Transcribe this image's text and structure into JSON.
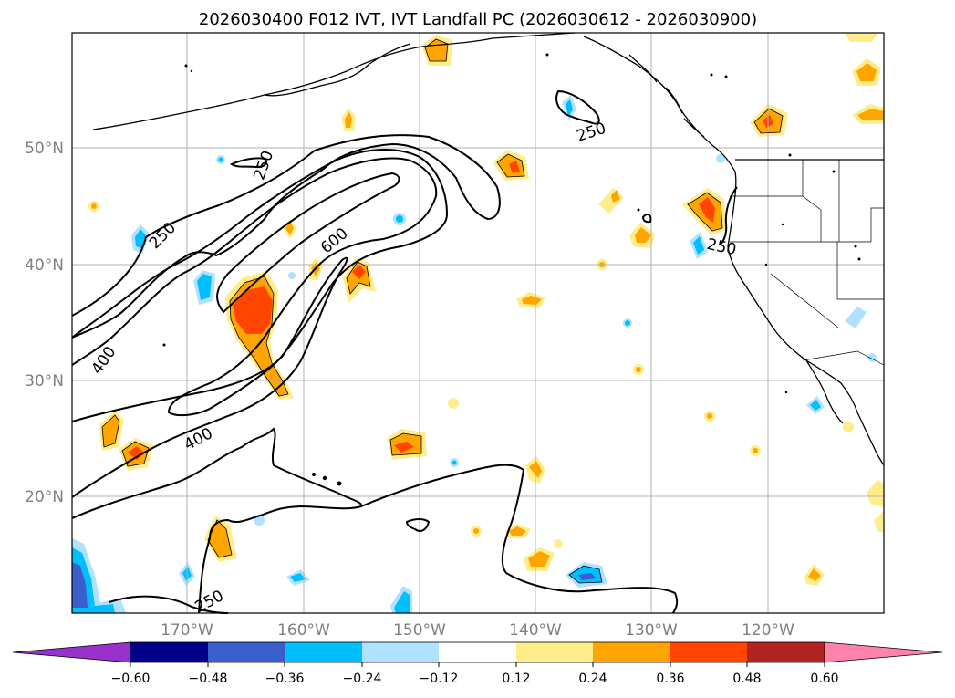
{
  "title": "2026030400 F012 IVT, IVT Landfall PC (2026030612 - 2026030900)",
  "lat_labels": [
    "50°N",
    "40°N",
    "30°N",
    "20°N"
  ],
  "lon_labels": [
    "170°W",
    "160°W",
    "150°W",
    "140°W",
    "130°W",
    "120°W"
  ],
  "contour_labels": [
    "250",
    "250",
    "250",
    "250",
    "250",
    "400",
    "400",
    "600"
  ],
  "colorbar": {
    "ticks": [
      "−0.60",
      "−0.48",
      "−0.36",
      "−0.24",
      "−0.12",
      "0.12",
      "0.24",
      "0.36",
      "0.48",
      "0.60"
    ],
    "colors": [
      "#9932cc",
      "#00008b",
      "#3a5fcd",
      "#00bfff",
      "#b0e2ff",
      "#ffffff",
      "#ffec8b",
      "#ffa500",
      "#ff4500",
      "#b22222",
      "#ff82ab"
    ]
  },
  "colors": {
    "positive_light": "#ffec8b",
    "positive_mid": "#ffa500",
    "positive_high": "#ff4500",
    "negative_light": "#b0e2ff",
    "negative_mid": "#00bfff",
    "negative_high": "#3a5fcd",
    "negative_extreme": "#9932cc",
    "grid": "#b0b0b0"
  }
}
